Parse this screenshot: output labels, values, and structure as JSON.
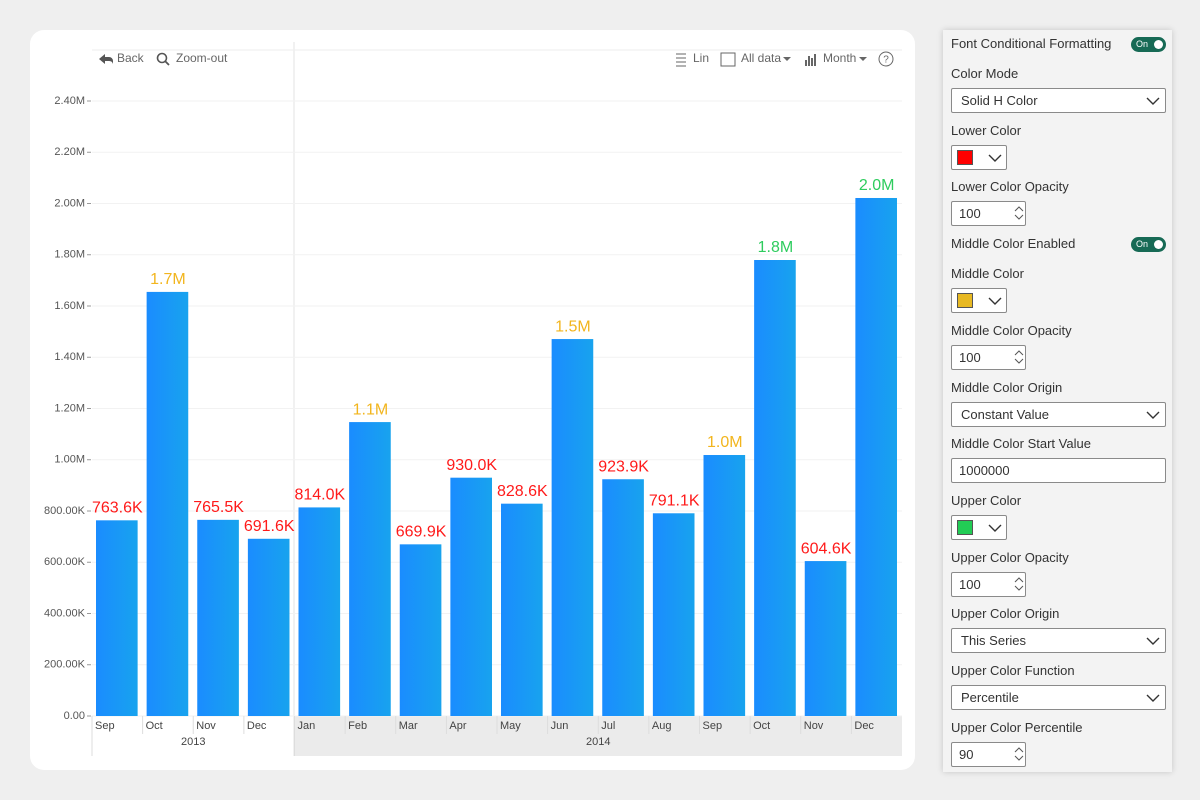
{
  "toolbar": {
    "back": "Back",
    "zoom_out": "Zoom-out",
    "scale": "Lin",
    "range": "All data",
    "period": "Month"
  },
  "chart_data": {
    "type": "bar",
    "categories": [
      "Sep",
      "Oct",
      "Nov",
      "Dec",
      "Jan",
      "Feb",
      "Mar",
      "Apr",
      "May",
      "Jun",
      "Jul",
      "Aug",
      "Sep",
      "Oct",
      "Nov",
      "Dec"
    ],
    "groups": [
      {
        "label": "2013",
        "span": 4
      },
      {
        "label": "2014",
        "span": 12
      }
    ],
    "values": [
      763600,
      1655000,
      765500,
      691600,
      814000,
      1147000,
      669900,
      930000,
      828600,
      1471000,
      923900,
      791100,
      1018500,
      1779500,
      604600,
      2021500
    ],
    "value_labels": [
      "763.6K",
      "1.7M",
      "765.5K",
      "691.6K",
      "814.0K",
      "1.1M",
      "669.9K",
      "930.0K",
      "828.6K",
      "1.5M",
      "923.9K",
      "791.1K",
      "1.0M",
      "1.8M",
      "604.6K",
      "2.0M"
    ],
    "value_label_colors": [
      "#ff1a1a",
      "#f2b51d",
      "#ff1a1a",
      "#ff1a1a",
      "#ff1a1a",
      "#f2b51d",
      "#ff1a1a",
      "#ff1a1a",
      "#ff1a1a",
      "#f2b51d",
      "#ff1a1a",
      "#ff1a1a",
      "#f2b51d",
      "#2ecc5e",
      "#ff1a1a",
      "#2ecc5e"
    ],
    "color": "#1a8cff",
    "ylim": [
      0,
      2400000
    ],
    "yticks": [
      {
        "value": 0,
        "label": "0.00"
      },
      {
        "value": 200000,
        "label": "200.00K"
      },
      {
        "value": 400000,
        "label": "400.00K"
      },
      {
        "value": 600000,
        "label": "600.00K"
      },
      {
        "value": 800000,
        "label": "800.00K"
      },
      {
        "value": 1000000,
        "label": "1.00M"
      },
      {
        "value": 1200000,
        "label": "1.20M"
      },
      {
        "value": 1400000,
        "label": "1.40M"
      },
      {
        "value": 1600000,
        "label": "1.60M"
      },
      {
        "value": 1800000,
        "label": "1.80M"
      },
      {
        "value": 2000000,
        "label": "2.00M"
      },
      {
        "value": 2200000,
        "label": "2.20M"
      },
      {
        "value": 2400000,
        "label": "2.40M"
      }
    ],
    "grid": true
  },
  "panel": {
    "items": [
      {
        "label": "Font Conditional Formatting",
        "toggle": "On"
      },
      {
        "label": "Color Mode",
        "dropdown": "Solid H Color"
      },
      {
        "label": "Lower Color",
        "swatch": "#ff0000"
      },
      {
        "label": "Lower Color Opacity",
        "spinner": 100
      },
      {
        "label": "Middle Color Enabled",
        "toggle": "On"
      },
      {
        "label": "Middle Color",
        "swatch": "#e8b923"
      },
      {
        "label": "Middle Color Opacity",
        "spinner": 100
      },
      {
        "label": "Middle Color Origin",
        "dropdown": "Constant Value"
      },
      {
        "label": "Middle Color Start Value",
        "text": 1000000
      },
      {
        "label": "Upper Color",
        "swatch": "#22cc55"
      },
      {
        "label": "Upper Color Opacity",
        "spinner": 100
      },
      {
        "label": "Upper Color Origin",
        "dropdown": "This Series"
      },
      {
        "label": "Upper Color Function",
        "dropdown": "Percentile"
      },
      {
        "label": "Upper Color Percentile",
        "spinner": 90
      }
    ]
  }
}
